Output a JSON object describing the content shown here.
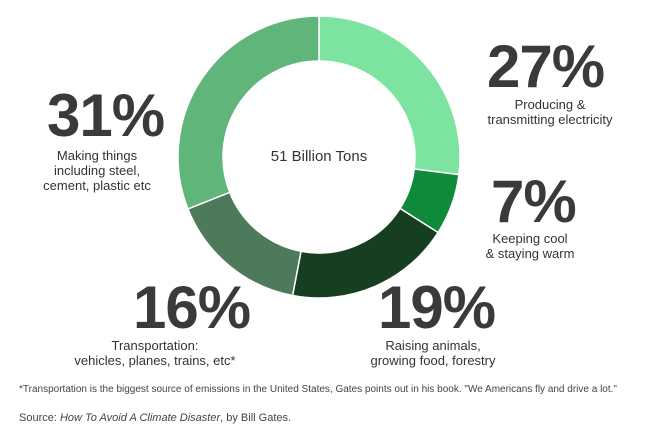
{
  "chart_data": {
    "type": "pie",
    "donut": true,
    "center_label": "51 Billion Tons",
    "slices": [
      {
        "label_pct": "27%",
        "value": 27,
        "description": [
          "Producing &",
          "transmitting electricity"
        ],
        "color": "#7de3a0"
      },
      {
        "label_pct": "7%",
        "value": 7,
        "description": [
          "Keeping cool",
          "& staying warm"
        ],
        "color": "#0f8a3a"
      },
      {
        "label_pct": "19%",
        "value": 19,
        "description": [
          "Raising animals,",
          "growing food, forestry"
        ],
        "color": "#163f22"
      },
      {
        "label_pct": "16%",
        "value": 16,
        "description": [
          "Transportation:",
          "vehicles, planes, trains, etc*"
        ],
        "color": "#4e7a5c"
      },
      {
        "label_pct": "31%",
        "value": 31,
        "description": [
          "Making things",
          "including steel,",
          "cement, plastic etc"
        ],
        "color": "#5fb57a"
      }
    ]
  },
  "footnote": "*Transportation is the biggest source of emissions in the United States, Gates points out in his book. \"We Americans fly and drive a lot.\"",
  "source": {
    "prefix": "Source: ",
    "title": "How To Avoid A Climate Disaster",
    "suffix": ", by Bill Gates."
  }
}
